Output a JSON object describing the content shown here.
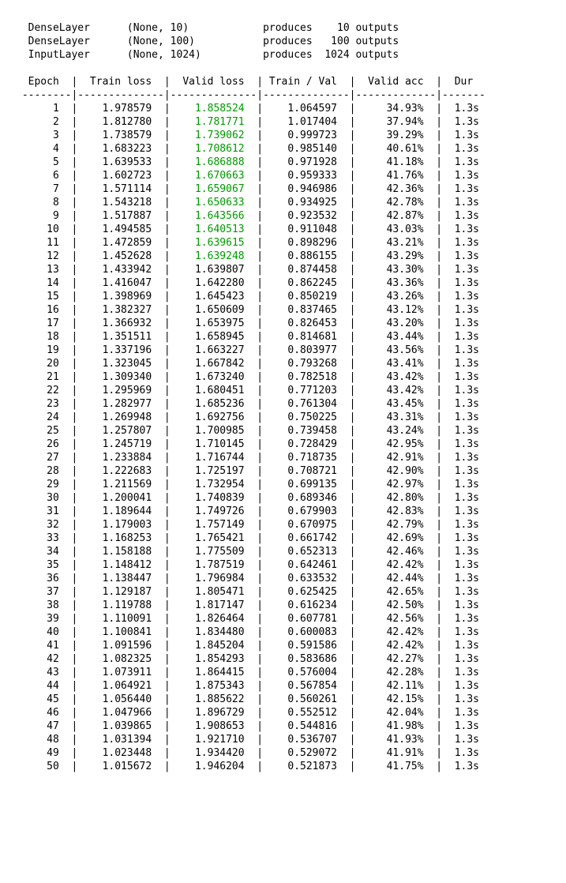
{
  "layers": [
    {
      "name": "DenseLayer",
      "shape": "(None, 10)",
      "word": "produces",
      "out": "10 outputs"
    },
    {
      "name": "DenseLayer",
      "shape": "(None, 100)",
      "word": "produces",
      "out": "100 outputs"
    },
    {
      "name": "InputLayer",
      "shape": "(None, 1024)",
      "word": "produces",
      "out": "1024 outputs"
    }
  ],
  "columns": [
    "Epoch",
    "Train loss",
    "Valid loss",
    "Train / Val",
    "Valid acc",
    "Dur"
  ],
  "valid_loss_highlight_color": "#009a00",
  "rows": [
    {
      "epoch": 1,
      "train_loss": "1.978579",
      "valid_loss": "1.858524",
      "ratio": "1.064597",
      "acc": "34.93%",
      "dur": "1.3s",
      "hl": true
    },
    {
      "epoch": 2,
      "train_loss": "1.812780",
      "valid_loss": "1.781771",
      "ratio": "1.017404",
      "acc": "37.94%",
      "dur": "1.3s",
      "hl": true
    },
    {
      "epoch": 3,
      "train_loss": "1.738579",
      "valid_loss": "1.739062",
      "ratio": "0.999723",
      "acc": "39.29%",
      "dur": "1.3s",
      "hl": true
    },
    {
      "epoch": 4,
      "train_loss": "1.683223",
      "valid_loss": "1.708612",
      "ratio": "0.985140",
      "acc": "40.61%",
      "dur": "1.3s",
      "hl": true
    },
    {
      "epoch": 5,
      "train_loss": "1.639533",
      "valid_loss": "1.686888",
      "ratio": "0.971928",
      "acc": "41.18%",
      "dur": "1.3s",
      "hl": true
    },
    {
      "epoch": 6,
      "train_loss": "1.602723",
      "valid_loss": "1.670663",
      "ratio": "0.959333",
      "acc": "41.76%",
      "dur": "1.3s",
      "hl": true
    },
    {
      "epoch": 7,
      "train_loss": "1.571114",
      "valid_loss": "1.659067",
      "ratio": "0.946986",
      "acc": "42.36%",
      "dur": "1.3s",
      "hl": true
    },
    {
      "epoch": 8,
      "train_loss": "1.543218",
      "valid_loss": "1.650633",
      "ratio": "0.934925",
      "acc": "42.78%",
      "dur": "1.3s",
      "hl": true
    },
    {
      "epoch": 9,
      "train_loss": "1.517887",
      "valid_loss": "1.643566",
      "ratio": "0.923532",
      "acc": "42.87%",
      "dur": "1.3s",
      "hl": true
    },
    {
      "epoch": 10,
      "train_loss": "1.494585",
      "valid_loss": "1.640513",
      "ratio": "0.911048",
      "acc": "43.03%",
      "dur": "1.3s",
      "hl": true
    },
    {
      "epoch": 11,
      "train_loss": "1.472859",
      "valid_loss": "1.639615",
      "ratio": "0.898296",
      "acc": "43.21%",
      "dur": "1.3s",
      "hl": true
    },
    {
      "epoch": 12,
      "train_loss": "1.452628",
      "valid_loss": "1.639248",
      "ratio": "0.886155",
      "acc": "43.29%",
      "dur": "1.3s",
      "hl": true
    },
    {
      "epoch": 13,
      "train_loss": "1.433942",
      "valid_loss": "1.639807",
      "ratio": "0.874458",
      "acc": "43.30%",
      "dur": "1.3s",
      "hl": false
    },
    {
      "epoch": 14,
      "train_loss": "1.416047",
      "valid_loss": "1.642280",
      "ratio": "0.862245",
      "acc": "43.36%",
      "dur": "1.3s",
      "hl": false
    },
    {
      "epoch": 15,
      "train_loss": "1.398969",
      "valid_loss": "1.645423",
      "ratio": "0.850219",
      "acc": "43.26%",
      "dur": "1.3s",
      "hl": false
    },
    {
      "epoch": 16,
      "train_loss": "1.382327",
      "valid_loss": "1.650609",
      "ratio": "0.837465",
      "acc": "43.12%",
      "dur": "1.3s",
      "hl": false
    },
    {
      "epoch": 17,
      "train_loss": "1.366932",
      "valid_loss": "1.653975",
      "ratio": "0.826453",
      "acc": "43.20%",
      "dur": "1.3s",
      "hl": false
    },
    {
      "epoch": 18,
      "train_loss": "1.351511",
      "valid_loss": "1.658945",
      "ratio": "0.814681",
      "acc": "43.44%",
      "dur": "1.3s",
      "hl": false
    },
    {
      "epoch": 19,
      "train_loss": "1.337196",
      "valid_loss": "1.663227",
      "ratio": "0.803977",
      "acc": "43.56%",
      "dur": "1.3s",
      "hl": false
    },
    {
      "epoch": 20,
      "train_loss": "1.323045",
      "valid_loss": "1.667842",
      "ratio": "0.793268",
      "acc": "43.41%",
      "dur": "1.3s",
      "hl": false
    },
    {
      "epoch": 21,
      "train_loss": "1.309340",
      "valid_loss": "1.673240",
      "ratio": "0.782518",
      "acc": "43.42%",
      "dur": "1.3s",
      "hl": false
    },
    {
      "epoch": 22,
      "train_loss": "1.295969",
      "valid_loss": "1.680451",
      "ratio": "0.771203",
      "acc": "43.42%",
      "dur": "1.3s",
      "hl": false
    },
    {
      "epoch": 23,
      "train_loss": "1.282977",
      "valid_loss": "1.685236",
      "ratio": "0.761304",
      "acc": "43.45%",
      "dur": "1.3s",
      "hl": false
    },
    {
      "epoch": 24,
      "train_loss": "1.269948",
      "valid_loss": "1.692756",
      "ratio": "0.750225",
      "acc": "43.31%",
      "dur": "1.3s",
      "hl": false
    },
    {
      "epoch": 25,
      "train_loss": "1.257807",
      "valid_loss": "1.700985",
      "ratio": "0.739458",
      "acc": "43.24%",
      "dur": "1.3s",
      "hl": false
    },
    {
      "epoch": 26,
      "train_loss": "1.245719",
      "valid_loss": "1.710145",
      "ratio": "0.728429",
      "acc": "42.95%",
      "dur": "1.3s",
      "hl": false
    },
    {
      "epoch": 27,
      "train_loss": "1.233884",
      "valid_loss": "1.716744",
      "ratio": "0.718735",
      "acc": "42.91%",
      "dur": "1.3s",
      "hl": false
    },
    {
      "epoch": 28,
      "train_loss": "1.222683",
      "valid_loss": "1.725197",
      "ratio": "0.708721",
      "acc": "42.90%",
      "dur": "1.3s",
      "hl": false
    },
    {
      "epoch": 29,
      "train_loss": "1.211569",
      "valid_loss": "1.732954",
      "ratio": "0.699135",
      "acc": "42.97%",
      "dur": "1.3s",
      "hl": false
    },
    {
      "epoch": 30,
      "train_loss": "1.200041",
      "valid_loss": "1.740839",
      "ratio": "0.689346",
      "acc": "42.80%",
      "dur": "1.3s",
      "hl": false
    },
    {
      "epoch": 31,
      "train_loss": "1.189644",
      "valid_loss": "1.749726",
      "ratio": "0.679903",
      "acc": "42.83%",
      "dur": "1.3s",
      "hl": false
    },
    {
      "epoch": 32,
      "train_loss": "1.179003",
      "valid_loss": "1.757149",
      "ratio": "0.670975",
      "acc": "42.79%",
      "dur": "1.3s",
      "hl": false
    },
    {
      "epoch": 33,
      "train_loss": "1.168253",
      "valid_loss": "1.765421",
      "ratio": "0.661742",
      "acc": "42.69%",
      "dur": "1.3s",
      "hl": false
    },
    {
      "epoch": 34,
      "train_loss": "1.158188",
      "valid_loss": "1.775509",
      "ratio": "0.652313",
      "acc": "42.46%",
      "dur": "1.3s",
      "hl": false
    },
    {
      "epoch": 35,
      "train_loss": "1.148412",
      "valid_loss": "1.787519",
      "ratio": "0.642461",
      "acc": "42.42%",
      "dur": "1.3s",
      "hl": false
    },
    {
      "epoch": 36,
      "train_loss": "1.138447",
      "valid_loss": "1.796984",
      "ratio": "0.633532",
      "acc": "42.44%",
      "dur": "1.3s",
      "hl": false
    },
    {
      "epoch": 37,
      "train_loss": "1.129187",
      "valid_loss": "1.805471",
      "ratio": "0.625425",
      "acc": "42.65%",
      "dur": "1.3s",
      "hl": false
    },
    {
      "epoch": 38,
      "train_loss": "1.119788",
      "valid_loss": "1.817147",
      "ratio": "0.616234",
      "acc": "42.50%",
      "dur": "1.3s",
      "hl": false
    },
    {
      "epoch": 39,
      "train_loss": "1.110091",
      "valid_loss": "1.826464",
      "ratio": "0.607781",
      "acc": "42.56%",
      "dur": "1.3s",
      "hl": false
    },
    {
      "epoch": 40,
      "train_loss": "1.100841",
      "valid_loss": "1.834480",
      "ratio": "0.600083",
      "acc": "42.42%",
      "dur": "1.3s",
      "hl": false
    },
    {
      "epoch": 41,
      "train_loss": "1.091596",
      "valid_loss": "1.845204",
      "ratio": "0.591586",
      "acc": "42.42%",
      "dur": "1.3s",
      "hl": false
    },
    {
      "epoch": 42,
      "train_loss": "1.082325",
      "valid_loss": "1.854293",
      "ratio": "0.583686",
      "acc": "42.27%",
      "dur": "1.3s",
      "hl": false
    },
    {
      "epoch": 43,
      "train_loss": "1.073911",
      "valid_loss": "1.864415",
      "ratio": "0.576004",
      "acc": "42.28%",
      "dur": "1.3s",
      "hl": false
    },
    {
      "epoch": 44,
      "train_loss": "1.064921",
      "valid_loss": "1.875343",
      "ratio": "0.567854",
      "acc": "42.11%",
      "dur": "1.3s",
      "hl": false
    },
    {
      "epoch": 45,
      "train_loss": "1.056440",
      "valid_loss": "1.885622",
      "ratio": "0.560261",
      "acc": "42.15%",
      "dur": "1.3s",
      "hl": false
    },
    {
      "epoch": 46,
      "train_loss": "1.047966",
      "valid_loss": "1.896729",
      "ratio": "0.552512",
      "acc": "42.04%",
      "dur": "1.3s",
      "hl": false
    },
    {
      "epoch": 47,
      "train_loss": "1.039865",
      "valid_loss": "1.908653",
      "ratio": "0.544816",
      "acc": "41.98%",
      "dur": "1.3s",
      "hl": false
    },
    {
      "epoch": 48,
      "train_loss": "1.031394",
      "valid_loss": "1.921710",
      "ratio": "0.536707",
      "acc": "41.93%",
      "dur": "1.3s",
      "hl": false
    },
    {
      "epoch": 49,
      "train_loss": "1.023448",
      "valid_loss": "1.934420",
      "ratio": "0.529072",
      "acc": "41.91%",
      "dur": "1.3s",
      "hl": false
    },
    {
      "epoch": 50,
      "train_loss": "1.015672",
      "valid_loss": "1.946204",
      "ratio": "0.521873",
      "acc": "41.75%",
      "dur": "1.3s",
      "hl": false
    }
  ],
  "widths": {
    "epoch": 8,
    "train": 14,
    "valid": 14,
    "ratio": 14,
    "acc": 13,
    "dur": 7,
    "layer_name": 14,
    "layer_shape": 18,
    "layer_word": 12,
    "layer_out": 14
  }
}
